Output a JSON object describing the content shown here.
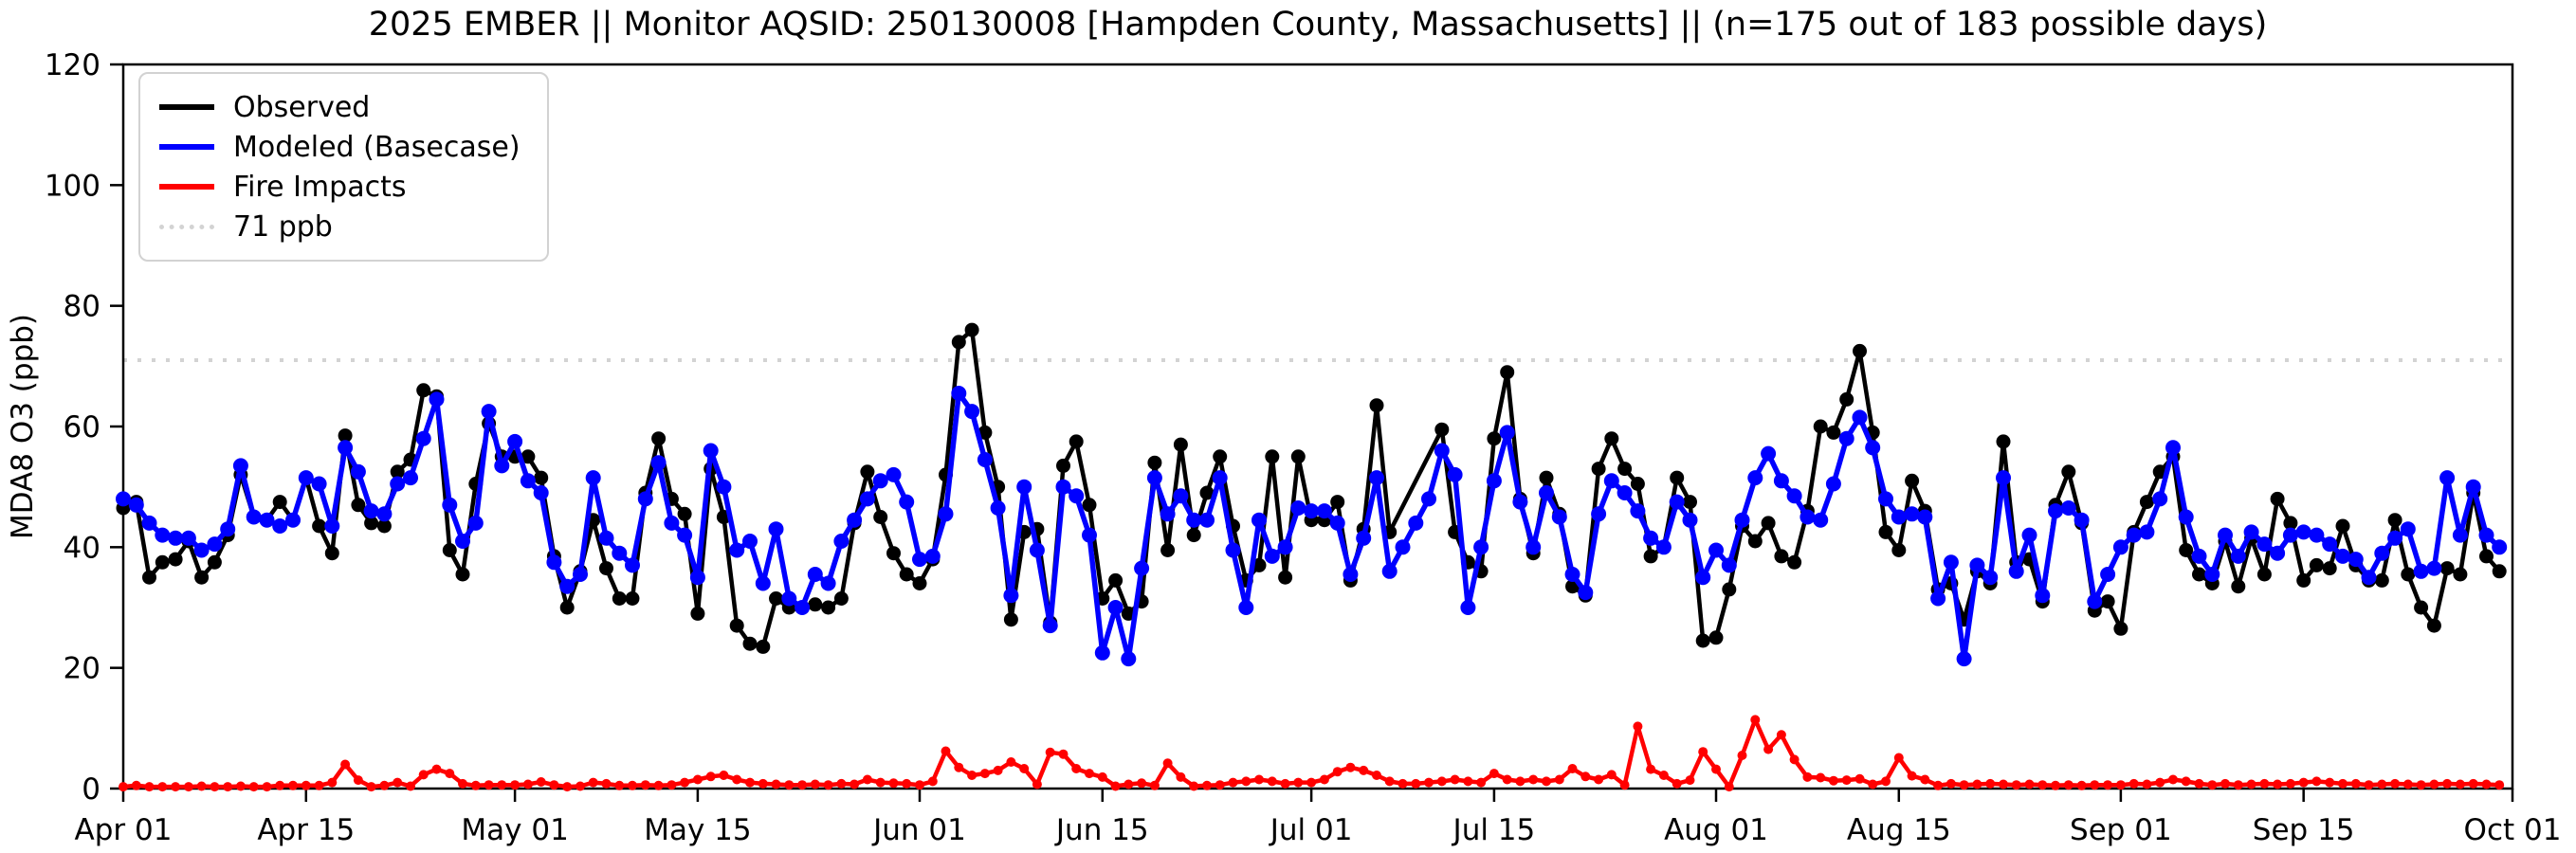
{
  "title": "2025 EMBER || Monitor AQSID: 250130008 [Hampden County, Massachusetts] || (n=175 out of 183 possible days)",
  "legend": {
    "items": [
      {
        "label": "Observed",
        "color": "#000000",
        "style": "solid"
      },
      {
        "label": "Modeled (Basecase)",
        "color": "#0000ff",
        "style": "solid"
      },
      {
        "label": "Fire Impacts",
        "color": "#ff0000",
        "style": "solid"
      },
      {
        "label": "71 ppb",
        "color": "#d3d3d3",
        "style": "dotted"
      }
    ]
  },
  "chart_data": {
    "type": "line",
    "title": "2025 EMBER || Monitor AQSID: 250130008 [Hampden County, Massachusetts] || (n=175 out of 183 possible days)",
    "xlabel": "",
    "ylabel": "MDA8 O3 (ppb)",
    "ylim": [
      0,
      120
    ],
    "yticks": [
      0,
      20,
      40,
      60,
      80,
      100,
      120
    ],
    "xtick_indices": [
      0,
      14,
      30,
      44,
      61,
      75,
      91,
      105,
      122,
      136,
      153,
      167,
      183
    ],
    "xtick_labels": [
      "Apr 01",
      "Apr 15",
      "May 01",
      "May 15",
      "Jun 01",
      "Jun 15",
      "Jul 01",
      "Jul 15",
      "Aug 01",
      "Aug 15",
      "Sep 01",
      "Sep 15",
      "Oct 01"
    ],
    "grid": false,
    "legend_position": "upper-left",
    "threshold": {
      "value": 71,
      "label": "71 ppb",
      "color": "#d3d3d3",
      "style": "dotted"
    },
    "dates": [
      "Apr 01",
      "Apr 02",
      "Apr 03",
      "Apr 04",
      "Apr 05",
      "Apr 06",
      "Apr 07",
      "Apr 08",
      "Apr 09",
      "Apr 10",
      "Apr 11",
      "Apr 12",
      "Apr 13",
      "Apr 14",
      "Apr 15",
      "Apr 16",
      "Apr 17",
      "Apr 18",
      "Apr 19",
      "Apr 20",
      "Apr 21",
      "Apr 22",
      "Apr 23",
      "Apr 24",
      "Apr 25",
      "Apr 26",
      "Apr 27",
      "Apr 28",
      "Apr 29",
      "Apr 30",
      "May 01",
      "May 02",
      "May 03",
      "May 04",
      "May 05",
      "May 06",
      "May 07",
      "May 08",
      "May 09",
      "May 10",
      "May 11",
      "May 12",
      "May 13",
      "May 14",
      "May 15",
      "May 16",
      "May 17",
      "May 18",
      "May 19",
      "May 20",
      "May 21",
      "May 22",
      "May 23",
      "May 24",
      "May 25",
      "May 26",
      "May 27",
      "May 28",
      "May 29",
      "May 30",
      "May 31",
      "Jun 01",
      "Jun 02",
      "Jun 03",
      "Jun 04",
      "Jun 05",
      "Jun 06",
      "Jun 07",
      "Jun 08",
      "Jun 09",
      "Jun 10",
      "Jun 11",
      "Jun 12",
      "Jun 13",
      "Jun 14",
      "Jun 15",
      "Jun 16",
      "Jun 17",
      "Jun 18",
      "Jun 19",
      "Jun 20",
      "Jun 21",
      "Jun 22",
      "Jun 23",
      "Jun 24",
      "Jun 25",
      "Jun 26",
      "Jun 27",
      "Jun 28",
      "Jun 29",
      "Jun 30",
      "Jul 01",
      "Jul 02",
      "Jul 03",
      "Jul 04",
      "Jul 05",
      "Jul 06",
      "Jul 07",
      "Jul 08",
      "Jul 09",
      "Jul 10",
      "Jul 11",
      "Jul 12",
      "Jul 13",
      "Jul 14",
      "Jul 15",
      "Jul 16",
      "Jul 17",
      "Jul 18",
      "Jul 19",
      "Jul 20",
      "Jul 21",
      "Jul 22",
      "Jul 23",
      "Jul 24",
      "Jul 25",
      "Jul 26",
      "Jul 27",
      "Jul 28",
      "Jul 29",
      "Jul 30",
      "Jul 31",
      "Aug 01",
      "Aug 02",
      "Aug 03",
      "Aug 04",
      "Aug 05",
      "Aug 06",
      "Aug 07",
      "Aug 08",
      "Aug 09",
      "Aug 10",
      "Aug 11",
      "Aug 12",
      "Aug 13",
      "Aug 14",
      "Aug 15",
      "Aug 16",
      "Aug 17",
      "Aug 18",
      "Aug 19",
      "Aug 20",
      "Aug 21",
      "Aug 22",
      "Aug 23",
      "Aug 24",
      "Aug 25",
      "Aug 26",
      "Aug 27",
      "Aug 28",
      "Aug 29",
      "Aug 30",
      "Aug 31",
      "Sep 01",
      "Sep 02",
      "Sep 03",
      "Sep 04",
      "Sep 05",
      "Sep 06",
      "Sep 07",
      "Sep 08",
      "Sep 09",
      "Sep 10",
      "Sep 11",
      "Sep 12",
      "Sep 13",
      "Sep 14",
      "Sep 15",
      "Sep 16",
      "Sep 17",
      "Sep 18",
      "Sep 19",
      "Sep 20",
      "Sep 21",
      "Sep 22",
      "Sep 23",
      "Sep 24",
      "Sep 25",
      "Sep 26",
      "Sep 27",
      "Sep 28",
      "Sep 29",
      "Sep 30"
    ],
    "series": [
      {
        "name": "Observed",
        "color": "#000000",
        "values": [
          46.5,
          47.5,
          35,
          37.5,
          38,
          41,
          35,
          37.5,
          42,
          52,
          45,
          44.5,
          47.5,
          44.5,
          51.5,
          43.5,
          39,
          58.5,
          47,
          44,
          43.5,
          52.5,
          54.5,
          66,
          65,
          39.5,
          35.5,
          50.5,
          60.5,
          55,
          55,
          55,
          51.5,
          38.5,
          30,
          36,
          44.5,
          36.5,
          31.5,
          31.5,
          49,
          58,
          48,
          45.5,
          29,
          53,
          45,
          27,
          24,
          23.5,
          31.5,
          30,
          30,
          30.5,
          30,
          31.5,
          44,
          52.5,
          45,
          39,
          35.5,
          34,
          38,
          52,
          74,
          76,
          59,
          50,
          28,
          42.5,
          43,
          27.5,
          53.5,
          57.5,
          47,
          31.5,
          34.5,
          29,
          31,
          54,
          39.5,
          57,
          42,
          49,
          55,
          43.5,
          34.5,
          37,
          55,
          35,
          55,
          44.5,
          44.5,
          47.5,
          34.5,
          43,
          63.5,
          42.5,
          null,
          null,
          null,
          59.5,
          42.5,
          37.5,
          36,
          58,
          69,
          48,
          39,
          51.5,
          45.5,
          33.5,
          32,
          53,
          58,
          53,
          50.5,
          38.5,
          40,
          51.5,
          47.5,
          24.5,
          25,
          33,
          43.5,
          41,
          44,
          38.5,
          37.5,
          46,
          60,
          59,
          64.5,
          72.5,
          59,
          42.5,
          39.5,
          51,
          46,
          33,
          34,
          28,
          36,
          34,
          57.5,
          37.5,
          38,
          31,
          47,
          52.5,
          44,
          29.5,
          31,
          26.5,
          42.5,
          47.5,
          52.5,
          55,
          39.5,
          35.5,
          34,
          41,
          33.5,
          41.5,
          35.5,
          48,
          44,
          34.5,
          37,
          36.5,
          43.5,
          37,
          34.5,
          34.5,
          44.5,
          35.5,
          30,
          27,
          36.5,
          35.5,
          49,
          38.5,
          36
        ]
      },
      {
        "name": "Modeled (Basecase)",
        "color": "#0000ff",
        "values": [
          48,
          47,
          44,
          42,
          41.5,
          41.5,
          39.5,
          40.5,
          43,
          53.5,
          45,
          44.5,
          43.5,
          44.5,
          51.5,
          50.5,
          43.5,
          56.5,
          52.5,
          46,
          45.5,
          50.5,
          51.5,
          58,
          64.5,
          47,
          41,
          44,
          62.5,
          53.5,
          57.5,
          51,
          49,
          37.5,
          33.5,
          35.5,
          51.5,
          41.5,
          39,
          37,
          48,
          54,
          44,
          42,
          35,
          56,
          50,
          39.5,
          41,
          34,
          43,
          31.5,
          30,
          35.5,
          34,
          41,
          44.5,
          48,
          51,
          52,
          47.5,
          38,
          38.5,
          45.5,
          65.5,
          62.5,
          54.5,
          46.5,
          32,
          50,
          39.5,
          27,
          50,
          48.5,
          42,
          22.5,
          30,
          21.5,
          36.5,
          51.5,
          45.5,
          48.5,
          44.5,
          44.5,
          51.5,
          39.5,
          30,
          44.5,
          38.5,
          40,
          46.5,
          46,
          46,
          44,
          35.5,
          41.5,
          51.5,
          36,
          40,
          44,
          48,
          56,
          52,
          30,
          40,
          51,
          59,
          47.5,
          40,
          49,
          45,
          35.5,
          32.5,
          45.5,
          51,
          49,
          46,
          41.5,
          40,
          47.5,
          44.5,
          35,
          39.5,
          37,
          44.5,
          51.5,
          55.5,
          51,
          48.5,
          45,
          44.5,
          50.5,
          58,
          61.5,
          56.5,
          48,
          45,
          45.5,
          45,
          31.5,
          37.5,
          21.5,
          37,
          35,
          51.5,
          36,
          42,
          32,
          46,
          46.5,
          44.5,
          31,
          35.5,
          40,
          42,
          42.5,
          48,
          56.5,
          45,
          38.5,
          35.5,
          42,
          38.5,
          42.5,
          40.5,
          39,
          42,
          42.5,
          42,
          40.5,
          38.5,
          38,
          35,
          39,
          41.5,
          43,
          36,
          36.5,
          51.5,
          42,
          50,
          42,
          40
        ]
      },
      {
        "name": "Fire Impacts",
        "color": "#ff0000",
        "values": [
          0.3,
          0.5,
          0.3,
          0.3,
          0.3,
          0.3,
          0.4,
          0.3,
          0.3,
          0.4,
          0.3,
          0.3,
          0.5,
          0.5,
          0.5,
          0.5,
          1,
          4,
          1.4,
          0.3,
          0.5,
          1,
          0.4,
          2.3,
          3.2,
          2.5,
          0.8,
          0.5,
          0.6,
          0.6,
          0.6,
          0.7,
          1.1,
          0.6,
          0.3,
          0.4,
          1,
          0.8,
          0.5,
          0.5,
          0.6,
          0.5,
          0.6,
          1,
          1.5,
          2,
          2.2,
          1.5,
          1,
          0.8,
          0.7,
          0.6,
          0.6,
          0.7,
          0.6,
          0.8,
          0.7,
          1.5,
          1,
          0.9,
          0.8,
          0.6,
          1.2,
          6.2,
          3.5,
          2.2,
          2.5,
          3,
          4.4,
          3.3,
          0.7,
          6,
          5.7,
          3.3,
          2.5,
          1.9,
          0.4,
          0.7,
          0.9,
          0.5,
          4.2,
          1.9,
          0.4,
          0.5,
          0.6,
          1,
          1.2,
          1.5,
          1.2,
          0.8,
          1,
          1,
          1.5,
          2.8,
          3.5,
          3,
          2.2,
          1.2,
          0.8,
          0.8,
          1,
          1.2,
          1.5,
          1.2,
          1,
          2.5,
          1.5,
          1.2,
          1.5,
          1.2,
          1.5,
          3.3,
          2,
          1.5,
          2.3,
          0.6,
          10.3,
          3.2,
          2.2,
          0.8,
          1.4,
          6.1,
          3.2,
          0.3,
          5.5,
          11.4,
          6.5,
          8.9,
          4.8,
          1.9,
          1.8,
          1.3,
          1.4,
          1.6,
          0.7,
          1.2,
          5.1,
          2.1,
          1.5,
          0.5,
          0.8,
          0.6,
          0.7,
          0.8,
          0.7,
          0.6,
          0.7,
          0.6,
          0.5,
          0.6,
          0.5,
          0.6,
          0.6,
          0.6,
          0.8,
          0.7,
          1,
          1.5,
          1.2,
          0.8,
          0.6,
          0.8,
          0.6,
          0.7,
          0.8,
          0.7,
          0.8,
          1,
          1.2,
          1,
          0.8,
          0.8,
          0.6,
          0.7,
          0.8,
          0.7,
          0.6,
          0.7,
          0.8,
          0.7,
          0.8,
          0.7,
          0.6
        ]
      }
    ]
  }
}
